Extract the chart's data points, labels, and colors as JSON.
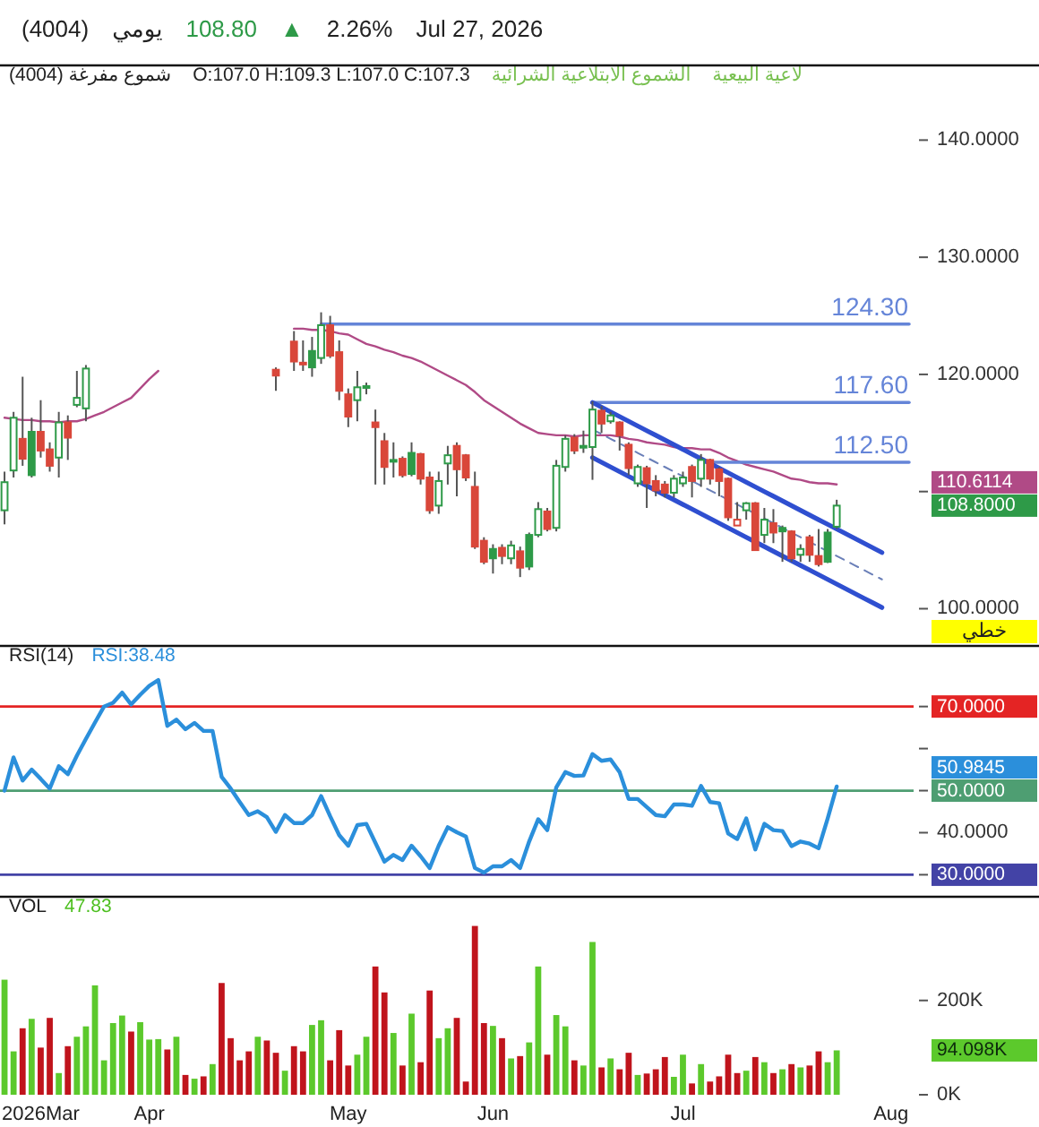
{
  "chart_data": [
    {
      "type": "other",
      "annotations": [
        "(4004)",
        "يومي",
        "108.80",
        "▲",
        "2.26%",
        "Jul 27, 2026"
      ]
    },
    {
      "type": "other",
      "annotations": [
        "(4004) شموع مفرغة",
        "O:107.0 H:109.3 L:107.0 C:107.3",
        "الشموع الابتلاعية الشرائية",
        "لاعية البيعية"
      ]
    },
    {
      "type": "candlestick",
      "ylabel": "خطي",
      "categories": [
        null,
        null,
        null,
        null,
        null,
        null,
        null,
        null,
        null,
        null,
        null,
        null,
        null,
        null,
        null,
        null,
        null,
        null,
        null,
        null,
        null,
        null,
        null,
        null,
        null,
        null,
        null,
        null,
        null,
        null,
        null,
        null,
        null,
        null,
        null,
        null,
        null,
        null,
        null,
        null,
        null,
        null,
        null,
        null,
        null,
        null,
        null,
        null,
        null,
        null,
        null,
        null,
        null,
        null,
        null,
        null,
        null,
        null,
        null,
        null,
        null,
        null,
        null,
        null,
        null,
        null,
        null,
        null,
        null,
        null,
        null,
        null,
        null,
        null,
        null,
        null,
        null,
        null,
        null,
        null,
        null,
        null,
        null,
        null,
        null,
        null,
        null,
        null,
        null,
        null,
        null,
        null,
        null,
        null,
        null,
        null,
        null,
        null,
        null,
        null,
        null
      ],
      "ohlc": [
        [
          108.4,
          111.7,
          107.2,
          110.8
        ],
        [
          111.8,
          116.8,
          111.2,
          116.3
        ],
        [
          114.5,
          119.8,
          112.2,
          112.8
        ],
        [
          115.1,
          116.3,
          111.2,
          111.4
        ],
        [
          115.1,
          117.8,
          112.9,
          113.5
        ],
        [
          113.6,
          114.2,
          111.7,
          112.2
        ],
        [
          112.9,
          116.8,
          111.2,
          115.9
        ],
        [
          115.9,
          116.5,
          112.7,
          114.6
        ],
        [
          117.4,
          120.3,
          117.2,
          118.0
        ],
        [
          117.1,
          120.8,
          116.0,
          120.5
        ],
        null,
        null,
        null,
        null,
        null,
        null,
        null,
        null,
        null,
        null,
        null,
        null,
        null,
        null,
        null,
        null,
        null,
        null,
        null,
        null,
        [
          120.4,
          120.6,
          118.6,
          119.9
        ],
        null,
        [
          122.8,
          123.7,
          120.3,
          121.1
        ],
        [
          121.0,
          122.9,
          120.3,
          120.9
        ],
        [
          122.0,
          123.2,
          119.8,
          120.6
        ],
        [
          121.4,
          125.3,
          120.9,
          124.2
        ],
        [
          124.2,
          125.0,
          121.4,
          121.6
        ],
        [
          121.9,
          122.9,
          117.8,
          118.6
        ],
        [
          118.3,
          118.8,
          115.5,
          116.4
        ],
        [
          117.8,
          120.3,
          116.0,
          118.9
        ],
        [
          118.9,
          119.3,
          118.3,
          119.0
        ],
        [
          115.9,
          117.0,
          110.6,
          115.5
        ],
        [
          114.3,
          115.0,
          110.6,
          112.1
        ],
        [
          112.6,
          114.2,
          111.2,
          112.7
        ],
        [
          112.8,
          113.0,
          111.2,
          111.4
        ],
        [
          113.3,
          114.2,
          111.3,
          111.5
        ],
        [
          113.2,
          113.3,
          110.6,
          111.1
        ],
        [
          111.2,
          111.7,
          108.1,
          108.4
        ],
        [
          108.8,
          111.7,
          108.1,
          110.9
        ],
        [
          112.4,
          113.9,
          110.6,
          113.1
        ],
        [
          113.9,
          114.2,
          109.6,
          111.9
        ],
        [
          113.1,
          113.2,
          110.9,
          111.2
        ],
        [
          110.4,
          111.7,
          105.1,
          105.3
        ],
        [
          105.8,
          106.1,
          103.8,
          104.0
        ],
        [
          105.1,
          105.5,
          103.0,
          104.3
        ],
        [
          105.2,
          105.5,
          103.8,
          104.5
        ],
        [
          104.3,
          105.8,
          103.8,
          105.4
        ],
        [
          104.9,
          105.3,
          102.7,
          103.5
        ],
        [
          106.3,
          106.5,
          103.3,
          103.6
        ],
        [
          106.3,
          109.1,
          106.1,
          108.5
        ],
        [
          108.3,
          108.6,
          106.6,
          106.8
        ],
        [
          106.9,
          112.7,
          106.6,
          112.2
        ],
        [
          112.1,
          114.8,
          111.7,
          114.5
        ],
        [
          114.6,
          114.9,
          113.2,
          113.5
        ],
        [
          113.8,
          115.2,
          113.3,
          113.9
        ],
        [
          113.8,
          117.7,
          111.0,
          117.0
        ],
        [
          116.9,
          117.3,
          115.0,
          115.8
        ],
        [
          116.0,
          116.8,
          115.8,
          116.5
        ],
        [
          115.9,
          116.0,
          113.5,
          114.8
        ],
        [
          114.0,
          114.2,
          111.4,
          112.0
        ],
        [
          110.7,
          112.3,
          110.4,
          112.1
        ],
        [
          112.0,
          112.2,
          108.6,
          110.7
        ],
        [
          110.9,
          111.4,
          109.6,
          110.1
        ],
        [
          110.6,
          110.9,
          109.5,
          109.9
        ],
        [
          109.9,
          111.4,
          109.5,
          111.1
        ],
        [
          110.7,
          111.7,
          110.4,
          111.2
        ],
        [
          112.1,
          112.3,
          109.5,
          110.9
        ],
        [
          111.1,
          113.2,
          110.4,
          112.7
        ],
        [
          112.7,
          112.8,
          110.6,
          111.1
        ],
        [
          111.9,
          112.1,
          109.6,
          110.9
        ],
        [
          111.1,
          111.2,
          107.5,
          107.8
        ],
        [
          107.1,
          109.1,
          107.1,
          107.6
        ],
        [
          108.4,
          109.1,
          107.6,
          109.0
        ],
        [
          109.0,
          109.1,
          105.0,
          105.0
        ],
        [
          106.3,
          108.6,
          105.6,
          107.6
        ],
        [
          107.3,
          108.5,
          105.6,
          106.5
        ],
        [
          106.9,
          107.1,
          104.0,
          106.6
        ],
        [
          106.6,
          106.7,
          104.0,
          104.3
        ],
        [
          104.6,
          105.5,
          104.0,
          105.1
        ],
        [
          106.1,
          106.3,
          104.0,
          104.6
        ],
        [
          104.5,
          106.8,
          103.6,
          103.8
        ],
        [
          106.5,
          106.8,
          103.9,
          104.0
        ],
        [
          107.0,
          109.3,
          106.8,
          108.8
        ],
        null,
        null,
        null,
        null,
        null,
        null,
        null,
        null
      ],
      "colors": [
        "#2e9a48",
        "#2e9a48",
        "#d9473a",
        "#2e9a48",
        "#d9473a",
        "#d9473a",
        "#2e9a48",
        "#d9473a",
        "#2e9a48",
        "#2e9a48",
        null,
        null,
        null,
        null,
        null,
        null,
        null,
        null,
        null,
        null,
        null,
        null,
        null,
        null,
        null,
        null,
        null,
        null,
        null,
        null,
        "#d9473a",
        null,
        "#d9473a",
        "#d9473a",
        "#2e9a48",
        "#2e9a48",
        "#d9473a",
        "#d9473a",
        "#d9473a",
        "#2e9a48",
        "#2e9a48",
        "#d9473a",
        "#d9473a",
        "#2e9a48",
        "#d9473a",
        "#2e9a48",
        "#d9473a",
        "#d9473a",
        "#2e9a48",
        "#2e9a48",
        "#d9473a",
        "#d9473a",
        "#d9473a",
        "#d9473a",
        "#2e9a48",
        "#d9473a",
        "#2e9a48",
        "#d9473a",
        "#2e9a48",
        "#2e9a48",
        "#d9473a",
        "#2e9a48",
        "#2e9a48",
        "#d9473a",
        "#2e9a48",
        "#2e9a48",
        "#d9473a",
        "#2e9a48",
        "#d9473a",
        "#d9473a",
        "#2e9a48",
        "#d9473a",
        "#d9473a",
        "#d9473a",
        "#2e9a48",
        "#2e9a48",
        "#d9473a",
        "#2e9a48",
        "#d9473a",
        "#d9473a",
        "#d9473a",
        "#d9473a",
        "#2e9a48",
        "#d9473a",
        "#2e9a48",
        "#d9473a",
        "#2e9a48",
        "#d9473a",
        "#2e9a48",
        "#d9473a",
        "#d9473a",
        "#2e9a48",
        "#2e9a48",
        null,
        null,
        null,
        null,
        null,
        null,
        null,
        null
      ],
      "value_labels": [
        null,
        null,
        null,
        null,
        null,
        null,
        null,
        null,
        null,
        null,
        null,
        null,
        null,
        null,
        null,
        null,
        null,
        null,
        null,
        null,
        null,
        null,
        null,
        null,
        null,
        null,
        null,
        null,
        null,
        null,
        null,
        null,
        null,
        null,
        null,
        null,
        null,
        null,
        null,
        null,
        null,
        null,
        null,
        null,
        null,
        null,
        null,
        null,
        null,
        null,
        null,
        null,
        null,
        null,
        null,
        null,
        null,
        null,
        null,
        null,
        null,
        null,
        null,
        null,
        null,
        null,
        null,
        null,
        null,
        null,
        null,
        null,
        null,
        null,
        null,
        null,
        null,
        null,
        null,
        null,
        null,
        null,
        null,
        null,
        null,
        null,
        null,
        null,
        null,
        null,
        null,
        null,
        "108.8000",
        null,
        null,
        null,
        null,
        null,
        null,
        null,
        null
      ],
      "series": [
        {
          "type": "line",
          "color": "#b04a86",
          "values": [
            116.3,
            116.2,
            116.1,
            116.1,
            116.0,
            116.0,
            115.9,
            116.0,
            116.0,
            116.2,
            116.5,
            116.8,
            117.2,
            117.6,
            118.0,
            118.8,
            119.6,
            120.3,
            null,
            null,
            null,
            null,
            null,
            null,
            null,
            null,
            null,
            null,
            null,
            null,
            null,
            null,
            123.9,
            123.9,
            123.8,
            123.8,
            123.7,
            123.5,
            123.4,
            123.0,
            122.6,
            122.4,
            122.1,
            121.9,
            121.6,
            121.4,
            121.1,
            120.7,
            120.3,
            119.9,
            119.5,
            119.1,
            118.5,
            117.8,
            117.3,
            116.8,
            116.3,
            115.8,
            115.4,
            115.0,
            114.9,
            114.8,
            114.8,
            114.7,
            114.8,
            114.8,
            114.8,
            114.8,
            114.7,
            114.5,
            114.4,
            114.2,
            114.1,
            114.0,
            113.8,
            113.7,
            113.7,
            113.6,
            113.6,
            113.3,
            112.9,
            112.6,
            112.3,
            112.1,
            111.9,
            111.7,
            111.4,
            111.1,
            111.0,
            110.8,
            110.7,
            110.7,
            110.6114,
            null,
            null,
            null,
            null,
            null,
            null,
            null,
            null
          ]
        },
        {
          "type": "line",
          "name": "124.30",
          "color": "#6585d8",
          "values": [
            null,
            null,
            null,
            null,
            null,
            null,
            null,
            null,
            null,
            null,
            null,
            null,
            null,
            null,
            null,
            null,
            null,
            null,
            null,
            null,
            null,
            null,
            null,
            null,
            null,
            null,
            null,
            null,
            null,
            null,
            null,
            null,
            null,
            null,
            null,
            124.3,
            124.3,
            124.3,
            124.3,
            124.3,
            124.3,
            124.3,
            124.3,
            124.3,
            124.3,
            124.3,
            124.3,
            124.3,
            124.3,
            124.3,
            124.3,
            124.3,
            124.3,
            124.3,
            124.3,
            124.3,
            124.3,
            124.3,
            124.3,
            124.3,
            124.3,
            124.3,
            124.3,
            124.3,
            124.3,
            124.3,
            124.3,
            124.3,
            124.3,
            124.3,
            124.3,
            124.3,
            124.3,
            124.3,
            124.3,
            124.3,
            124.3,
            124.3,
            124.3,
            124.3,
            124.3,
            124.3,
            124.3,
            124.3,
            124.3,
            124.3,
            124.3,
            124.3,
            124.3,
            124.3,
            124.3,
            124.3,
            124.3,
            124.3,
            124.3,
            124.3,
            124.3,
            124.3,
            124.3,
            124.3,
            124.3
          ]
        },
        {
          "type": "line",
          "name": "117.60",
          "color": "#6585d8",
          "values": [
            null,
            null,
            null,
            null,
            null,
            null,
            null,
            null,
            null,
            null,
            null,
            null,
            null,
            null,
            null,
            null,
            null,
            null,
            null,
            null,
            null,
            null,
            null,
            null,
            null,
            null,
            null,
            null,
            null,
            null,
            null,
            null,
            null,
            null,
            null,
            null,
            null,
            null,
            null,
            null,
            null,
            null,
            null,
            null,
            null,
            null,
            null,
            null,
            null,
            null,
            null,
            null,
            null,
            null,
            null,
            null,
            null,
            null,
            null,
            null,
            null,
            null,
            null,
            null,
            null,
            117.6,
            117.6,
            117.6,
            117.6,
            117.6,
            117.6,
            117.6,
            117.6,
            117.6,
            117.6,
            117.6,
            117.6,
            117.6,
            117.6,
            117.6,
            117.6,
            117.6,
            117.6,
            117.6,
            117.6,
            117.6,
            117.6,
            117.6,
            117.6,
            117.6,
            117.6,
            117.6,
            117.6,
            117.6,
            117.6,
            117.6,
            117.6,
            117.6,
            117.6,
            117.6,
            117.6
          ]
        },
        {
          "type": "line",
          "name": "112.50",
          "color": "#6585d8",
          "values": [
            null,
            null,
            null,
            null,
            null,
            null,
            null,
            null,
            null,
            null,
            null,
            null,
            null,
            null,
            null,
            null,
            null,
            null,
            null,
            null,
            null,
            null,
            null,
            null,
            null,
            null,
            null,
            null,
            null,
            null,
            null,
            null,
            null,
            null,
            null,
            null,
            null,
            null,
            null,
            null,
            null,
            null,
            null,
            null,
            null,
            null,
            null,
            null,
            null,
            null,
            null,
            null,
            null,
            null,
            null,
            null,
            null,
            null,
            null,
            null,
            null,
            null,
            null,
            null,
            null,
            null,
            null,
            null,
            null,
            null,
            null,
            null,
            null,
            null,
            null,
            null,
            null,
            112.5,
            112.5,
            112.5,
            112.5,
            112.5,
            112.5,
            112.5,
            112.5,
            112.5,
            112.5,
            112.5,
            112.5,
            112.5,
            112.5,
            112.5,
            112.5,
            112.5,
            112.5,
            112.5,
            112.5,
            112.5,
            112.5,
            112.5,
            112.5
          ]
        },
        {
          "type": "line",
          "color": "#2f4fd0",
          "values": [
            null,
            null,
            null,
            null,
            null,
            null,
            null,
            null,
            null,
            null,
            null,
            null,
            null,
            null,
            null,
            null,
            null,
            null,
            null,
            null,
            null,
            null,
            null,
            null,
            null,
            null,
            null,
            null,
            null,
            null,
            null,
            null,
            null,
            null,
            null,
            null,
            null,
            null,
            null,
            null,
            null,
            null,
            null,
            null,
            null,
            null,
            null,
            null,
            null,
            null,
            null,
            null,
            null,
            null,
            null,
            null,
            null,
            null,
            null,
            null,
            null,
            null,
            null,
            null,
            null,
            117.6,
            117.2,
            116.8,
            116.4,
            116.0,
            115.6,
            115.2,
            114.8,
            114.4,
            114.0,
            113.6,
            113.2,
            112.8,
            112.4,
            112.0,
            111.6,
            111.2,
            110.8,
            110.4,
            110.0,
            109.6,
            109.2,
            108.8,
            108.4,
            108.0,
            107.6,
            107.2,
            106.8,
            106.4,
            106.0,
            105.6,
            105.2,
            104.8,
            null,
            null,
            null
          ]
        },
        {
          "type": "line",
          "color": "#2f4fd0",
          "values": [
            null,
            null,
            null,
            null,
            null,
            null,
            null,
            null,
            null,
            null,
            null,
            null,
            null,
            null,
            null,
            null,
            null,
            null,
            null,
            null,
            null,
            null,
            null,
            null,
            null,
            null,
            null,
            null,
            null,
            null,
            null,
            null,
            null,
            null,
            null,
            null,
            null,
            null,
            null,
            null,
            null,
            null,
            null,
            null,
            null,
            null,
            null,
            null,
            null,
            null,
            null,
            null,
            null,
            null,
            null,
            null,
            null,
            null,
            null,
            null,
            null,
            null,
            null,
            null,
            null,
            112.9,
            112.5,
            112.1,
            111.7,
            111.3,
            110.9,
            110.5,
            110.1,
            109.7,
            109.3,
            108.9,
            108.5,
            108.1,
            107.7,
            107.3,
            106.9,
            106.5,
            106.1,
            105.7,
            105.3,
            104.9,
            104.5,
            104.1,
            103.7,
            103.3,
            102.9,
            102.5,
            102.1,
            101.7,
            101.3,
            100.9,
            100.5,
            100.1,
            null,
            null,
            null
          ]
        },
        {
          "type": "line",
          "color": "#6a7fb8",
          "line_style": "dashed",
          "values": [
            null,
            null,
            null,
            null,
            null,
            null,
            null,
            null,
            null,
            null,
            null,
            null,
            null,
            null,
            null,
            null,
            null,
            null,
            null,
            null,
            null,
            null,
            null,
            null,
            null,
            null,
            null,
            null,
            null,
            null,
            null,
            null,
            null,
            null,
            null,
            null,
            null,
            null,
            null,
            null,
            null,
            null,
            null,
            null,
            null,
            null,
            null,
            null,
            null,
            null,
            null,
            null,
            null,
            null,
            null,
            null,
            null,
            null,
            null,
            null,
            null,
            null,
            null,
            null,
            null,
            115.3,
            114.9,
            114.5,
            114.1,
            113.7,
            113.3,
            112.9,
            112.5,
            112.1,
            111.7,
            111.3,
            110.9,
            110.5,
            110.1,
            109.7,
            109.3,
            108.9,
            108.5,
            108.1,
            107.7,
            107.3,
            106.9,
            106.5,
            106.1,
            105.7,
            105.3,
            104.9,
            104.5,
            104.1,
            103.7,
            103.3,
            102.9,
            102.5,
            null,
            null,
            null
          ]
        }
      ],
      "ylim": [
        96.9,
        146.3
      ],
      "yticks": [
        {
          "value": 100,
          "label": "100.0000"
        },
        {
          "value": 110,
          "label": null
        },
        {
          "value": 120,
          "label": "120.0000"
        },
        {
          "value": 130,
          "label": "130.0000"
        },
        {
          "value": 140,
          "label": "140.0000"
        }
      ],
      "tick_labels": "y",
      "annotations": [
        "110.6114"
      ]
    },
    {
      "type": "line",
      "title": "RSI(14)",
      "subtitle": "RSI:38.48",
      "categories": [
        null,
        null,
        null,
        null,
        null,
        null,
        null,
        null,
        null,
        null,
        null,
        null,
        null,
        null,
        null,
        null,
        null,
        null,
        null,
        null,
        null,
        null,
        null,
        null,
        null,
        null,
        null,
        null,
        null,
        null,
        null,
        null,
        null,
        null,
        null,
        null,
        null,
        null,
        null,
        null,
        null,
        null,
        null,
        null,
        null,
        null,
        null,
        null,
        null,
        null,
        null,
        null,
        null,
        null,
        null,
        null,
        null,
        null,
        null,
        null,
        null,
        null,
        null,
        null,
        null,
        null,
        null,
        null,
        null,
        null,
        null,
        null,
        null,
        null,
        null,
        null,
        null,
        null,
        null,
        null,
        null,
        null,
        null,
        null,
        null,
        null,
        null,
        null,
        null,
        null,
        null,
        null,
        null,
        null,
        null,
        null,
        null,
        null,
        null,
        null,
        null
      ],
      "values": [
        50.0,
        57.9,
        52.4,
        55.0,
        52.8,
        50.5,
        55.8,
        53.9,
        58.3,
        62.3,
        66.2,
        70.0,
        70.9,
        73.3,
        70.5,
        72.8,
        74.9,
        76.3,
        65.4,
        66.9,
        64.6,
        66.1,
        64.2,
        64.2,
        53.3,
        50.5,
        47.3,
        44.2,
        45.1,
        43.7,
        40.2,
        44.2,
        42.3,
        42.3,
        44.2,
        48.7,
        43.9,
        39.4,
        36.9,
        41.8,
        42.1,
        37.6,
        33.1,
        34.7,
        33.5,
        36.9,
        34.4,
        31.6,
        36.9,
        41.3,
        40.1,
        39.1,
        31.6,
        30.5,
        32.0,
        32.0,
        33.5,
        31.6,
        37.9,
        43.2,
        40.6,
        50.8,
        54.4,
        53.5,
        53.6,
        58.7,
        57.1,
        57.4,
        54.4,
        48.0,
        48.0,
        46.1,
        44.2,
        43.9,
        46.7,
        46.7,
        46.4,
        51.1,
        47.3,
        47.0,
        39.8,
        38.5,
        43.4,
        36.0,
        42.1,
        40.6,
        40.4,
        36.8,
        37.9,
        37.4,
        36.3,
        43.4,
        50.9845,
        null,
        null,
        null,
        null,
        null,
        null,
        null,
        null
      ],
      "color": "#2b8fdb",
      "ylim": [
        25.4,
        84.2
      ],
      "yticks": [
        {
          "value": 30,
          "label": "30.0000"
        },
        {
          "value": 40,
          "label": "40.0000"
        },
        {
          "value": 50,
          "label": "50.0000"
        },
        {
          "value": 60,
          "label": null
        },
        {
          "value": 70,
          "label": "70.0000"
        }
      ],
      "tick_labels": "y",
      "ref_lines": [
        {
          "axis": "y",
          "value": 70,
          "color": "#e42424"
        },
        {
          "axis": "y",
          "value": 50,
          "color": "#4e9e72"
        },
        {
          "axis": "y",
          "value": 30,
          "color": "#4343a6"
        }
      ],
      "annotations": [
        "50.9845"
      ]
    },
    {
      "type": "bar",
      "title": "VOL",
      "subtitle": "47.83",
      "categories": [
        null,
        null,
        null,
        null,
        "2026Mar",
        null,
        null,
        null,
        null,
        null,
        null,
        null,
        null,
        null,
        null,
        null,
        "Apr",
        null,
        null,
        null,
        null,
        null,
        null,
        null,
        null,
        null,
        null,
        null,
        null,
        null,
        null,
        null,
        null,
        null,
        null,
        null,
        null,
        null,
        "May",
        null,
        null,
        null,
        null,
        null,
        null,
        null,
        null,
        null,
        null,
        null,
        null,
        null,
        null,
        null,
        "Jun",
        null,
        null,
        null,
        null,
        null,
        null,
        null,
        null,
        null,
        null,
        null,
        null,
        null,
        null,
        null,
        null,
        null,
        null,
        null,
        null,
        "Jul",
        null,
        null,
        null,
        null,
        null,
        null,
        null,
        null,
        null,
        null,
        null,
        null,
        null,
        null,
        null,
        null,
        null,
        null,
        null,
        null,
        null,
        null,
        "Aug",
        null,
        null
      ],
      "values": [
        244,
        92,
        141,
        161,
        100,
        163,
        46,
        103,
        123,
        145,
        232,
        73,
        152,
        168,
        134,
        154,
        117,
        118,
        96,
        123,
        42,
        34,
        39,
        65,
        237,
        120,
        73,
        92,
        123,
        115,
        89,
        51,
        103,
        92,
        148,
        158,
        73,
        137,
        62,
        85,
        123,
        272,
        217,
        131,
        62,
        172,
        69,
        221,
        120,
        141,
        163,
        28,
        358,
        152,
        146,
        120,
        77,
        82,
        111,
        272,
        85,
        169,
        145,
        73,
        62,
        324,
        58,
        77,
        54,
        89,
        42,
        45,
        54,
        80,
        38,
        85,
        24,
        65,
        28,
        39,
        85,
        46,
        51,
        80,
        69,
        46,
        54,
        65,
        58,
        62,
        92,
        69,
        94.098,
        null,
        null,
        null,
        null,
        null,
        null,
        null,
        null
      ],
      "colors": [
        "#5cc92c",
        "#5cc92c",
        "#c0141c",
        "#5cc92c",
        "#c0141c",
        "#c0141c",
        "#5cc92c",
        "#c0141c",
        "#5cc92c",
        "#5cc92c",
        "#5cc92c",
        "#5cc92c",
        "#5cc92c",
        "#5cc92c",
        "#c0141c",
        "#5cc92c",
        "#5cc92c",
        "#5cc92c",
        "#c0141c",
        "#5cc92c",
        "#c0141c",
        "#5cc92c",
        "#c0141c",
        "#5cc92c",
        "#c0141c",
        "#c0141c",
        "#c0141c",
        "#c0141c",
        "#5cc92c",
        "#c0141c",
        "#c0141c",
        "#5cc92c",
        "#c0141c",
        "#c0141c",
        "#5cc92c",
        "#5cc92c",
        "#c0141c",
        "#c0141c",
        "#c0141c",
        "#5cc92c",
        "#5cc92c",
        "#c0141c",
        "#c0141c",
        "#5cc92c",
        "#c0141c",
        "#5cc92c",
        "#c0141c",
        "#c0141c",
        "#5cc92c",
        "#5cc92c",
        "#c0141c",
        "#c0141c",
        "#c0141c",
        "#c0141c",
        "#5cc92c",
        "#c0141c",
        "#5cc92c",
        "#c0141c",
        "#5cc92c",
        "#5cc92c",
        "#c0141c",
        "#5cc92c",
        "#5cc92c",
        "#c0141c",
        "#5cc92c",
        "#5cc92c",
        "#c0141c",
        "#5cc92c",
        "#c0141c",
        "#c0141c",
        "#5cc92c",
        "#c0141c",
        "#c0141c",
        "#c0141c",
        "#5cc92c",
        "#5cc92c",
        "#c0141c",
        "#5cc92c",
        "#c0141c",
        "#c0141c",
        "#c0141c",
        "#c0141c",
        "#5cc92c",
        "#c0141c",
        "#5cc92c",
        "#c0141c",
        "#5cc92c",
        "#c0141c",
        "#5cc92c",
        "#c0141c",
        "#c0141c",
        "#5cc92c",
        "#5cc92c",
        null,
        null,
        null,
        null,
        null,
        null,
        null,
        null
      ],
      "ylim": [
        0,
        418
      ],
      "yticks": [
        {
          "value": 0,
          "label": "0K"
        },
        {
          "value": 200,
          "label": "200K"
        }
      ],
      "annotations": [
        "94.098K"
      ]
    }
  ]
}
